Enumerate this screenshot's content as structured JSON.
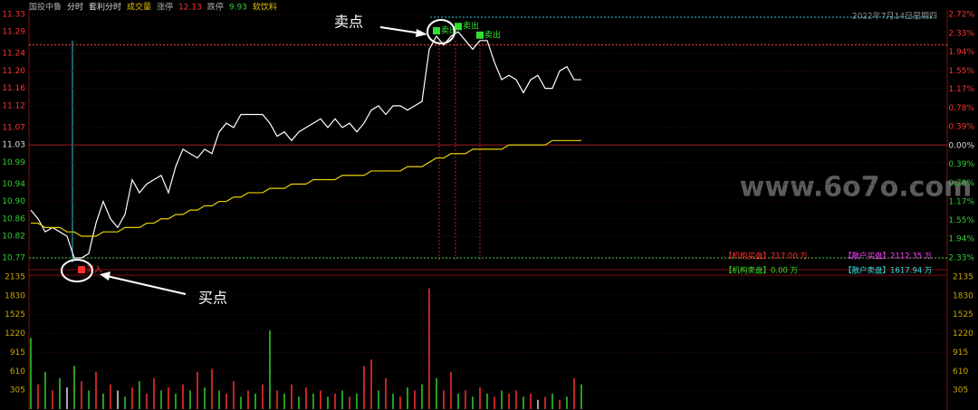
{
  "chart_data": {
    "type": "line",
    "header": [
      {
        "text": "国投中鲁",
        "color": "#aaaaaa"
      },
      {
        "text": "分时",
        "color": "#dddddd"
      },
      {
        "text": "套利分时",
        "color": "#dddddd"
      },
      {
        "text": "成交量",
        "color": "#e0c000"
      },
      {
        "text": "涨停",
        "color": "#aaaaaa"
      },
      {
        "text": "12.13",
        "color": "#ff3030"
      },
      {
        "text": "跌停",
        "color": "#aaaaaa"
      },
      {
        "text": "9.93",
        "color": "#30d030"
      },
      {
        "text": "软饮料",
        "color": "#e0c000"
      }
    ],
    "date": "2022年7月14日星期四",
    "ylim": [
      10.77,
      11.33
    ],
    "yticks": [
      11.33,
      11.29,
      11.24,
      {
        "value": 11.2,
        "label": "11.20"
      },
      11.16,
      11.12,
      11.07,
      11.03,
      10.99,
      10.94,
      {
        "value": 10.9,
        "label": "10.90"
      },
      10.86,
      10.82,
      10.77
    ],
    "y2lim": [
      -2.33,
      2.72
    ],
    "y2ticks": [
      {
        "value": 2.72,
        "label": "2.72%"
      },
      {
        "value": 2.33,
        "label": "2.33%"
      },
      {
        "value": 1.94,
        "label": "1.94%"
      },
      {
        "value": 1.55,
        "label": "1.55%"
      },
      {
        "value": 1.17,
        "label": "1.17%"
      },
      {
        "value": 0.78,
        "label": "0.78%"
      },
      {
        "value": 0.39,
        "label": "0.39%"
      },
      {
        "value": 0,
        "label": "0.00%"
      },
      {
        "value": -0.39,
        "label": "0.39%"
      },
      {
        "value": -0.78,
        "label": "0.78%"
      },
      {
        "value": -1.17,
        "label": "1.17%"
      },
      {
        "value": -1.55,
        "label": "1.55%"
      },
      {
        "value": -1.94,
        "label": "1.94%"
      },
      {
        "value": -2.33,
        "label": "2.33%"
      }
    ],
    "grid": true,
    "series": [
      {
        "color": "#ffffff",
        "values": [
          10.88,
          10.86,
          10.83,
          10.84,
          10.83,
          10.82,
          10.77,
          10.77,
          10.78,
          10.85,
          10.9,
          10.86,
          10.84,
          10.87,
          10.95,
          10.92,
          10.94,
          10.95,
          10.96,
          10.92,
          10.98,
          11.02,
          11.01,
          11.0,
          11.02,
          11.01,
          11.06,
          11.08,
          11.07,
          11.1,
          11.1,
          11.1,
          11.1,
          11.08,
          11.05,
          11.06,
          11.04,
          11.06,
          11.07,
          11.08,
          11.09,
          11.07,
          11.09,
          11.07,
          11.08,
          11.06,
          11.08,
          11.11,
          11.12,
          11.1,
          11.12,
          11.12,
          11.11,
          11.12,
          11.13,
          11.25,
          11.28,
          11.26,
          11.28,
          11.29,
          11.27,
          11.25,
          11.27,
          11.27,
          11.22,
          11.18,
          11.19,
          11.18,
          11.15,
          11.18,
          11.19,
          11.16,
          11.16,
          11.2,
          11.21,
          11.18,
          11.18
        ]
      },
      {
        "color": "#e8d000",
        "values": [
          10.85,
          10.85,
          10.84,
          10.84,
          10.84,
          10.83,
          10.83,
          10.82,
          10.82,
          10.82,
          10.83,
          10.83,
          10.83,
          10.84,
          10.84,
          10.84,
          10.85,
          10.85,
          10.86,
          10.86,
          10.87,
          10.87,
          10.88,
          10.88,
          10.89,
          10.89,
          10.9,
          10.9,
          10.91,
          10.91,
          10.92,
          10.92,
          10.92,
          10.93,
          10.93,
          10.93,
          10.94,
          10.94,
          10.94,
          10.95,
          10.95,
          10.95,
          10.95,
          10.96,
          10.96,
          10.96,
          10.96,
          10.97,
          10.97,
          10.97,
          10.97,
          10.97,
          10.98,
          10.98,
          10.98,
          10.99,
          11.0,
          11.0,
          11.01,
          11.01,
          11.01,
          11.02,
          11.02,
          11.02,
          11.02,
          11.02,
          11.03,
          11.03,
          11.03,
          11.03,
          11.03,
          11.03,
          11.04,
          11.04,
          11.04,
          11.04,
          11.04
        ]
      }
    ],
    "ref_lines": [
      {
        "value": 11.26,
        "color": "#ff4040"
      },
      {
        "value": 10.77,
        "color": "#40d040"
      }
    ],
    "trade_marks": [
      {
        "label": "买入",
        "color": "#ff3030"
      },
      {
        "label": "卖出",
        "color": "#30e030"
      },
      {
        "label": "卖出",
        "color": "#30e030"
      },
      {
        "label": "卖出",
        "color": "#30e030"
      }
    ],
    "volume": {
      "type": "bar",
      "ylim": [
        0,
        2135
      ],
      "yticks": [
        2135,
        1830,
        1525,
        1220,
        915,
        610,
        305
      ],
      "values": [
        1150,
        400,
        600,
        300,
        500,
        350,
        700,
        450,
        300,
        600,
        250,
        400,
        300,
        200,
        350,
        450,
        250,
        500,
        300,
        350,
        250,
        400,
        300,
        600,
        350,
        650,
        300,
        250,
        450,
        200,
        300,
        250,
        400,
        1270,
        300,
        250,
        400,
        200,
        350,
        250,
        300,
        200,
        250,
        300,
        200,
        250,
        700,
        800,
        300,
        500,
        250,
        200,
        350,
        300,
        400,
        1950,
        500,
        300,
        600,
        250,
        300,
        200,
        350,
        250,
        200,
        300,
        250,
        300,
        200,
        250,
        150,
        200,
        250,
        150,
        200,
        500,
        400
      ],
      "colors": [
        "#30d030",
        "#ff3030",
        "#30d030",
        "#ff3030",
        "#30d030",
        "#dddddd",
        "#30d030",
        "#ff3030",
        "#30d030",
        "#ff3030",
        "#30d030",
        "#ff3030",
        "#dddddd",
        "#30d030",
        "#ff3030",
        "#30d030",
        "#ff3030",
        "#ff3030",
        "#30d030",
        "#ff3030",
        "#30d030",
        "#ff3030",
        "#30d030",
        "#ff3030",
        "#30d030",
        "#ff3030",
        "#30d030",
        "#ff3030",
        "#ff3030",
        "#30d030",
        "#ff3030",
        "#30d030",
        "#ff3030",
        "#30d030",
        "#ff3030",
        "#30d030",
        "#ff3030",
        "#30d030",
        "#ff3030",
        "#30d030",
        "#ff3030",
        "#30d030",
        "#ff3030",
        "#30d030",
        "#ff3030",
        "#30d030",
        "#ff3030",
        "#ff3030",
        "#30d030",
        "#ff3030",
        "#30d030",
        "#ff3030",
        "#30d030",
        "#ff3030",
        "#30d030",
        "#ff3030",
        "#30d030",
        "#ff3030",
        "#ff3030",
        "#30d030",
        "#ff3030",
        "#30d030",
        "#ff3030",
        "#30d030",
        "#ff3030",
        "#30d030",
        "#ff3030",
        "#ff3030",
        "#30d030",
        "#ff3030",
        "#dddddd",
        "#ff3030",
        "#30d030",
        "#ff3030",
        "#30d030",
        "#ff3030",
        "#30d030"
      ]
    },
    "flows": [
      {
        "text": "【机构买盘】217.00 万",
        "color": "#ff3030"
      },
      {
        "text": "【散户买盘】2112.35 万",
        "color": "#ff40ff"
      },
      {
        "text": "【机构卖盘】0.00 万",
        "color": "#30e030"
      },
      {
        "text": "【散户卖盘】1617.94 万",
        "color": "#30e0e0"
      }
    ],
    "annotations": [
      "卖点",
      "买点"
    ],
    "watermark": "www.6o7o.com"
  }
}
